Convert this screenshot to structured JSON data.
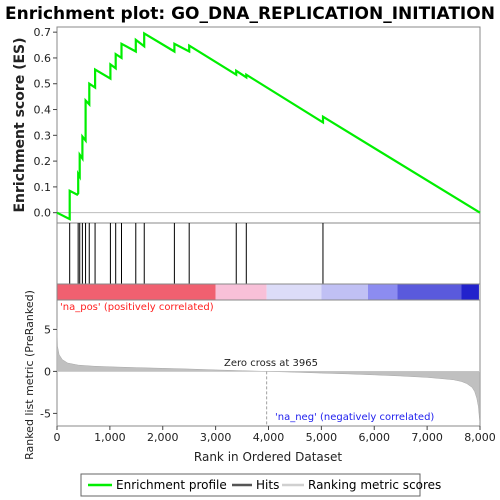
{
  "title": "Enrichment plot: GO_DNA_REPLICATION_INITIATION",
  "colors": {
    "enrichment_line": "#00ee00",
    "hits": "#000000",
    "ranked_metric_fill": "#c0c0c0",
    "pos_label": "#ff2020",
    "neg_label": "#2020ee",
    "zero_cross_line": "#a0a0a0"
  },
  "annotations": {
    "pos_label": "'na_pos' (positively correlated)",
    "neg_label": "'na_neg' (negatively correlated)",
    "zero_cross": "Zero cross at 3965"
  },
  "legend": {
    "items": [
      "Enrichment profile",
      "Hits",
      "Ranking metric scores"
    ]
  },
  "chart_data": [
    {
      "type": "line",
      "name": "enrichment-profile",
      "title": "Enrichment plot: GO_DNA_REPLICATION_INITIATION",
      "ylabel": "Enrichment score (ES)",
      "xlim": [
        0,
        8000
      ],
      "ylim": [
        -0.04,
        0.72
      ],
      "yticks": [
        0.0,
        0.1,
        0.2,
        0.3,
        0.4,
        0.5,
        0.6,
        0.7
      ],
      "ytick_labels": [
        "0.0",
        "0.1",
        "0.2",
        "0.3",
        "0.4",
        "0.5",
        "0.6",
        "0.7"
      ],
      "x": [
        0,
        240,
        240,
        380,
        400,
        400,
        430,
        430,
        480,
        480,
        540,
        540,
        610,
        610,
        720,
        720,
        1010,
        1010,
        1110,
        1110,
        1220,
        1220,
        1490,
        1490,
        1650,
        1650,
        2220,
        2220,
        2500,
        2500,
        3390,
        3390,
        3580,
        3580,
        5030,
        5030,
        8000
      ],
      "y": [
        0.0,
        -0.025,
        0.085,
        0.07,
        0.075,
        0.15,
        0.14,
        0.225,
        0.21,
        0.295,
        0.28,
        0.435,
        0.42,
        0.5,
        0.485,
        0.555,
        0.52,
        0.575,
        0.56,
        0.615,
        0.6,
        0.655,
        0.625,
        0.67,
        0.645,
        0.695,
        0.625,
        0.655,
        0.625,
        0.648,
        0.535,
        0.55,
        0.525,
        0.535,
        0.35,
        0.372,
        0.0
      ],
      "hits": [
        240,
        400,
        430,
        480,
        540,
        610,
        720,
        1010,
        1110,
        1220,
        1490,
        1650,
        2220,
        2500,
        3390,
        3580,
        5030
      ]
    },
    {
      "type": "heatmap",
      "name": "rank-color-bar",
      "segments": [
        {
          "from": 0,
          "to": 3000,
          "color": "#f06070"
        },
        {
          "from": 3000,
          "to": 3965,
          "color": "#f8c0d8"
        },
        {
          "from": 3965,
          "to": 5000,
          "color": "#dcdcf8"
        },
        {
          "from": 5000,
          "to": 5880,
          "color": "#c0c0f4"
        },
        {
          "from": 5880,
          "to": 6440,
          "color": "#8c8cf0"
        },
        {
          "from": 6440,
          "to": 7650,
          "color": "#5a5adc"
        },
        {
          "from": 7650,
          "to": 7980,
          "color": "#2222cc"
        }
      ]
    },
    {
      "type": "area",
      "name": "ranked-list-metric",
      "xlabel": "Rank in Ordered Dataset",
      "ylabel": "Ranked list metric (PreRanked)",
      "xlim": [
        0,
        8000
      ],
      "ylim": [
        -6.5,
        8.5
      ],
      "yticks": [
        -5,
        0,
        5
      ],
      "ytick_labels": [
        "-5",
        "0",
        "5"
      ],
      "xticks": [
        0,
        1000,
        2000,
        3000,
        4000,
        5000,
        6000,
        7000,
        8000
      ],
      "xtick_labels": [
        "0",
        "1,000",
        "2,000",
        "3,000",
        "4,000",
        "5,000",
        "6,000",
        "7,000",
        "8,000"
      ],
      "zero_cross": 3965,
      "x": [
        0,
        10,
        40,
        100,
        200,
        400,
        700,
        1000,
        1500,
        2000,
        2500,
        3000,
        3500,
        3965,
        4500,
        5000,
        5500,
        6000,
        6500,
        7000,
        7300,
        7500,
        7650,
        7750,
        7850,
        7900,
        7940,
        7970,
        7985,
        7995
      ],
      "y": [
        5.2,
        3.0,
        2.0,
        1.4,
        1.0,
        0.75,
        0.62,
        0.55,
        0.45,
        0.37,
        0.28,
        0.18,
        0.08,
        0.0,
        -0.1,
        -0.2,
        -0.3,
        -0.42,
        -0.55,
        -0.72,
        -0.88,
        -1.0,
        -1.2,
        -1.45,
        -1.9,
        -2.4,
        -3.2,
        -4.2,
        -5.3,
        -6.0
      ]
    }
  ]
}
